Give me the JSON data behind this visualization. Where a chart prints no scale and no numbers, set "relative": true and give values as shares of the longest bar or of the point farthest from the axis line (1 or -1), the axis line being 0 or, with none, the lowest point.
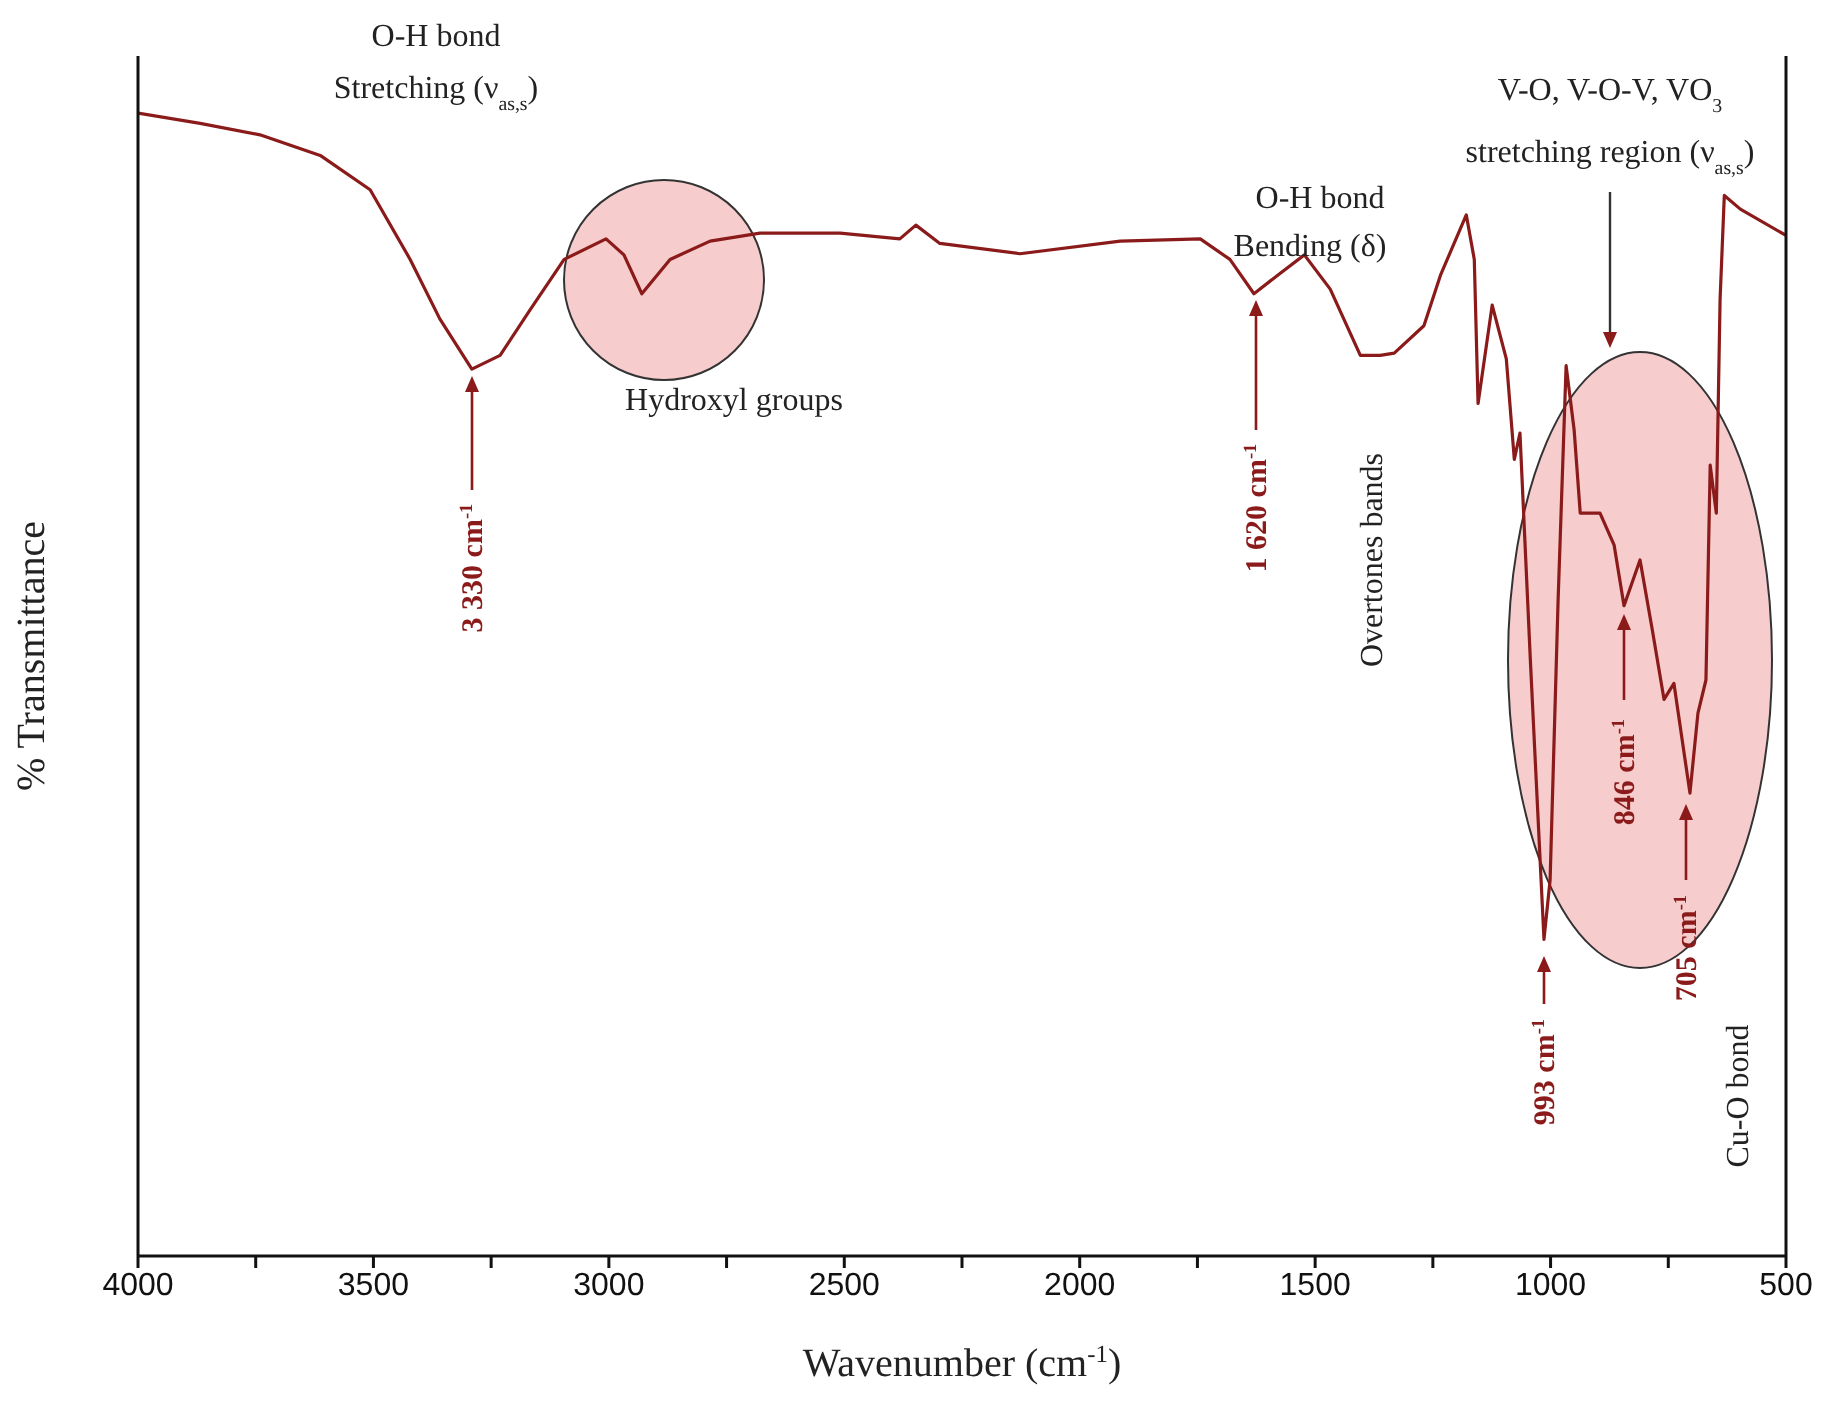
{
  "chart_data": {
    "type": "line",
    "xlabel": "Wavenumber (cm$^{-1}$)",
    "ylabel": "% Transmittance",
    "relative": true,
    "xlim": [
      4000,
      500
    ],
    "xticks": [
      4000,
      {
        "value": 3750,
        "label": null
      },
      3500,
      {
        "value": 3250,
        "label": null
      },
      3000,
      {
        "value": 2750,
        "label": null
      },
      2500,
      {
        "value": 2250,
        "label": null
      },
      2000,
      {
        "value": 1750,
        "label": null
      },
      1500,
      {
        "value": 1250,
        "label": null
      },
      1000,
      {
        "value": 750,
        "label": null
      },
      500
    ],
    "x": [
      4000,
      3868,
      3741,
      3613,
      3507,
      3422,
      3359,
      3291,
      3231,
      3167,
      3095,
      3006,
      2968,
      2930,
      2870,
      2785,
      2679,
      2509,
      2382,
      2348,
      2297,
      2127,
      1914,
      1744,
      1681,
      1630,
      1574,
      1523,
      1468,
      1404,
      1362,
      1332,
      1269,
      1234,
      1179,
      1162,
      1154,
      1124,
      1094,
      1077,
      1065,
      1043,
      1014,
      1001,
      984,
      967,
      950,
      937,
      895,
      865,
      844,
      810,
      784,
      759,
      738,
      704,
      687,
      670,
      661,
      648,
      640,
      631,
      597,
      500
    ],
    "series": [
      {
        "color": "#8b1a1a",
        "values": [
          1.0,
          0.991,
          0.981,
          0.963,
          0.933,
          0.872,
          0.82,
          0.776,
          0.788,
          0.828,
          0.872,
          0.89,
          0.876,
          0.842,
          0.872,
          0.888,
          0.895,
          0.895,
          0.89,
          0.902,
          0.886,
          0.877,
          0.888,
          0.89,
          0.872,
          0.842,
          0.86,
          0.876,
          0.846,
          0.788,
          0.788,
          0.79,
          0.814,
          0.858,
          0.911,
          0.872,
          0.746,
          0.832,
          0.785,
          0.697,
          0.72,
          0.522,
          0.277,
          0.329,
          0.574,
          0.779,
          0.723,
          0.65,
          0.65,
          0.622,
          0.569,
          0.609,
          0.548,
          0.487,
          0.501,
          0.405,
          0.475,
          0.504,
          0.692,
          0.65,
          0.837,
          0.928,
          0.916,
          0.893
        ]
      }
    ],
    "annotations": [
      "O-H bond",
      "Stretching (ν$_{as,s}$)",
      "Hydroxyl groups",
      "3 330 cm$^{-1}$",
      "O-H bond",
      "Bending (δ)",
      "1 620 cm$^{-1}$",
      "Overtones bands",
      "V-O, V-O-V, VO$_{3}$",
      "stretching region (ν$_{as,s}$)",
      "846 cm$^{-1}$",
      "993 cm$^{-1}$",
      "705 cm$^{-1}$",
      "Cu-O bond"
    ]
  }
}
